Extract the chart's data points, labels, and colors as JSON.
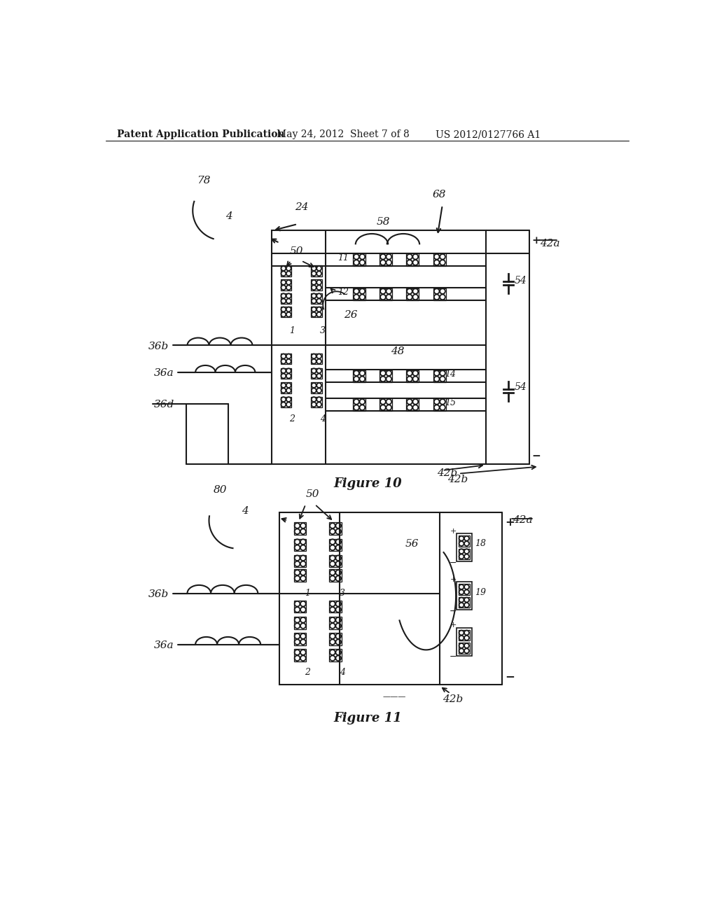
{
  "bg_color": "#ffffff",
  "line_color": "#1a1a1a",
  "header_text": "Patent Application Publication",
  "header_date": "May 24, 2012  Sheet 7 of 8",
  "header_patent": "US 2012/0127766 A1",
  "fig10_caption": "Figure 10",
  "fig11_caption": "Figure 11"
}
